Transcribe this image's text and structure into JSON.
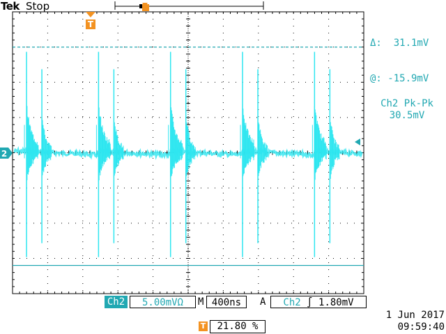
{
  "header": {
    "brand": "Tek",
    "state": "Stop"
  },
  "markers": {
    "trigger_top": "T",
    "channel": "2"
  },
  "cursor_readout": {
    "delta": "Δ:  31.1mV",
    "at": "@: -15.9mV"
  },
  "measurement": {
    "label": "Ch2 Pk-Pk",
    "value": "30.5mV"
  },
  "bottom_bar": {
    "channel": "Ch2",
    "scale": "5.00mVΩ",
    "m_label": "M",
    "timebase": "400ns",
    "a_label": "A",
    "trigger_channel": "Ch2",
    "trigger_slope": "∫",
    "trigger_level": "1.80mV"
  },
  "trigger_position": {
    "icon": "T",
    "value": "21.80 %"
  },
  "datetime": {
    "date": "1 Jun  2017",
    "time": "09:59:40"
  },
  "colors": {
    "trace": "#2ee6f0",
    "cyan_ui": "#21a8b2",
    "orange": "#f39221",
    "grid": "#000000"
  },
  "waveform": {
    "baseline_div": 0.0,
    "period_div": 2.05,
    "first_spike_div": 0.2,
    "spike_count": 5,
    "cursor_upper_div": 3.0,
    "cursor_lower_div": -3.2
  }
}
